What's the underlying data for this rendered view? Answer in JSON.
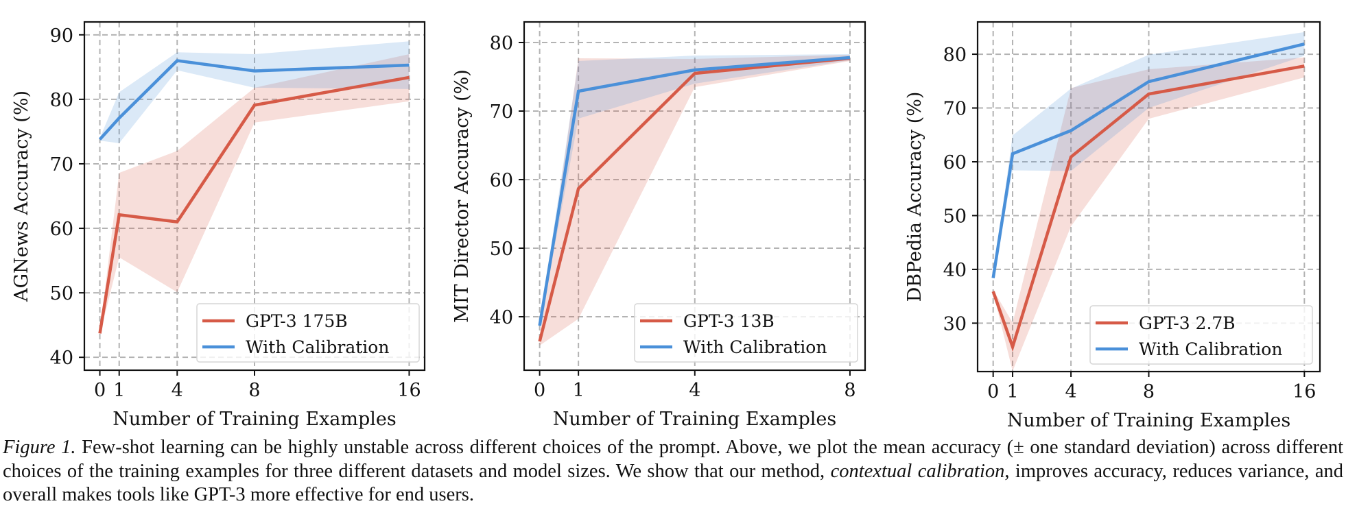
{
  "chart_data": [
    {
      "type": "line",
      "title": "",
      "xlabel": "Number of Training Examples",
      "ylabel": "AGNews Accuracy (%)",
      "x": [
        0,
        1,
        4,
        8,
        16
      ],
      "xticks": [
        0,
        1,
        4,
        8,
        16
      ],
      "yticks": [
        40,
        50,
        60,
        70,
        80,
        90
      ],
      "xlim": [
        -0.8,
        16.8
      ],
      "ylim": [
        38,
        92
      ],
      "grid": true,
      "legend_position": "lower-right",
      "series": [
        {
          "name": "GPT-3 175B",
          "color": "#d65a47",
          "values": [
            43.7,
            62.1,
            61.0,
            79.1,
            83.4
          ],
          "lower": [
            43.5,
            55.5,
            50.1,
            76.4,
            79.7
          ],
          "upper": [
            44.0,
            68.6,
            72.0,
            81.8,
            87.0
          ]
        },
        {
          "name": "With Calibration",
          "color": "#4a90d9",
          "values": [
            73.8,
            77.1,
            86.0,
            84.4,
            85.3
          ],
          "lower": [
            73.6,
            73.2,
            84.5,
            81.8,
            81.6
          ],
          "upper": [
            74.0,
            81.1,
            87.3,
            87.0,
            89.0
          ]
        }
      ]
    },
    {
      "type": "line",
      "title": "",
      "xlabel": "Number of Training Examples",
      "ylabel": "MIT Director Accuracy (%)",
      "x": [
        0,
        1,
        4,
        8
      ],
      "xticks": [
        0,
        1,
        4,
        8
      ],
      "yticks": [
        40,
        50,
        60,
        70,
        80
      ],
      "xlim": [
        -0.4,
        8.39
      ],
      "ylim": [
        32.2,
        83
      ],
      "grid": true,
      "legend_position": "lower-right",
      "series": [
        {
          "name": "GPT-3 13B",
          "color": "#d65a47",
          "values": [
            36.4,
            58.7,
            75.5,
            77.7
          ],
          "lower": [
            35.8,
            39.7,
            73.5,
            77.3
          ],
          "upper": [
            37.0,
            77.7,
            77.6,
            78.2
          ]
        },
        {
          "name": "With Calibration",
          "color": "#4a90d9",
          "values": [
            38.7,
            72.9,
            76.0,
            77.8
          ],
          "lower": [
            38.5,
            68.9,
            74.0,
            77.4
          ],
          "upper": [
            38.9,
            77.3,
            78.1,
            78.3
          ]
        }
      ]
    },
    {
      "type": "line",
      "title": "",
      "xlabel": "Number of Training Examples",
      "ylabel": "DBPedia Accuracy (%)",
      "x": [
        0,
        1,
        4,
        8,
        16
      ],
      "xticks": [
        0,
        1,
        4,
        8,
        16
      ],
      "yticks": [
        30,
        40,
        50,
        60,
        70,
        80
      ],
      "xlim": [
        -0.8,
        16.8
      ],
      "ylim": [
        21,
        86
      ],
      "grid": true,
      "legend_position": "lower-right",
      "series": [
        {
          "name": "GPT-3 2.7B",
          "color": "#d65a47",
          "values": [
            35.9,
            25.6,
            60.9,
            72.6,
            77.8
          ],
          "lower": [
            35.7,
            21.1,
            48.0,
            68.0,
            75.7
          ],
          "upper": [
            36.2,
            30.1,
            73.7,
            77.2,
            79.4
          ]
        },
        {
          "name": "With Calibration",
          "color": "#4a90d9",
          "values": [
            38.4,
            61.5,
            65.8,
            74.9,
            81.9
          ],
          "lower": [
            38.2,
            58.4,
            58.3,
            70.0,
            79.7
          ],
          "upper": [
            38.6,
            64.9,
            73.6,
            79.9,
            84.1
          ]
        }
      ]
    }
  ],
  "caption": {
    "label": "Figure 1.",
    "text_1": " Few-shot learning can be highly unstable across different choices of the prompt. Above, we plot the mean accuracy (± one standard deviation) across different choices of the training examples for three different datasets and model sizes. We show that our method, ",
    "emphasis": "contextual calibration",
    "text_2": ", improves accuracy, reduces variance, and overall makes tools like GPT-3 more effective for end users."
  }
}
